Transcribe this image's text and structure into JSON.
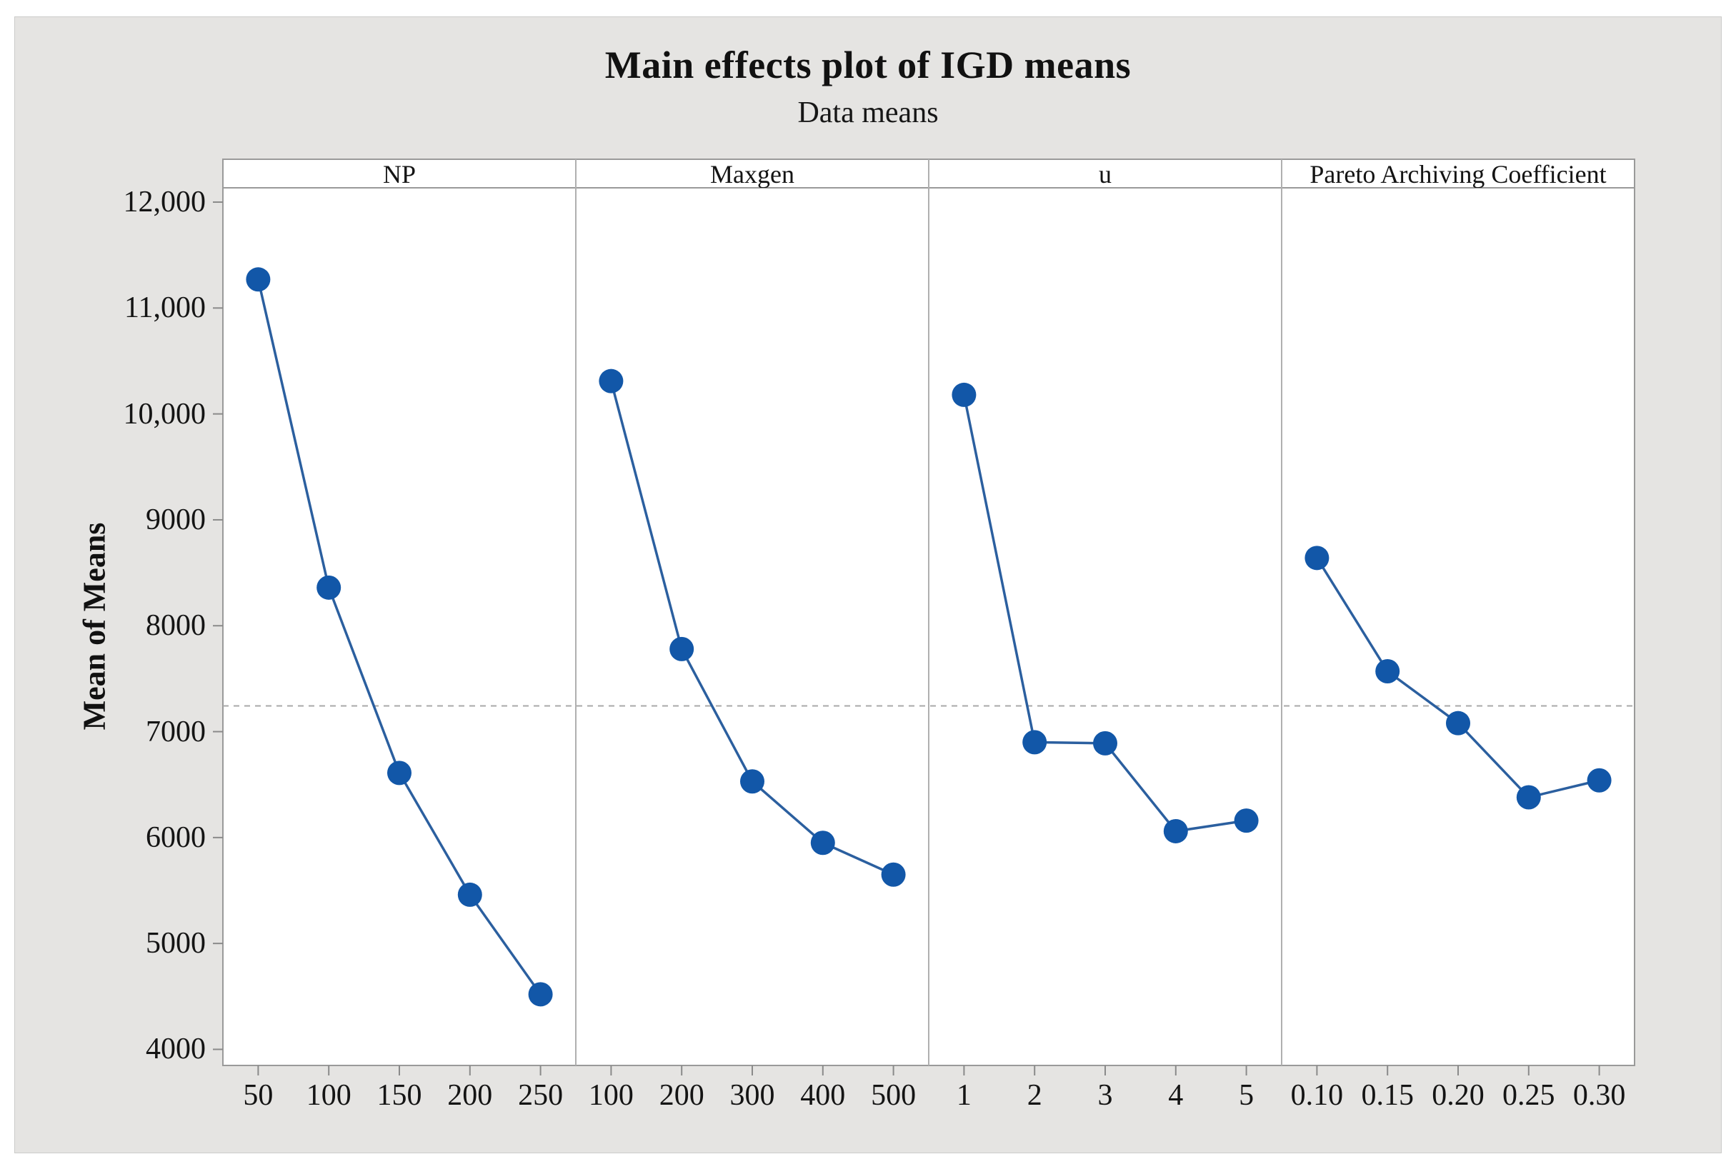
{
  "title": "Main effects plot of IGD means",
  "subtitle": "Data means",
  "colors": {
    "canvas_background": "#e5e4e2",
    "plot_background": "#ffffff",
    "panel_border": "#9a9a9a",
    "panel_separator": "#b0b0b0",
    "tick_mark": "#8a8a8a",
    "reference_line": "#a8a8a8",
    "series_line": "#2b5f9f",
    "marker_fill": "#1257a8",
    "text": "#141414"
  },
  "chart_data": {
    "type": "line",
    "title": "Main effects plot of IGD means",
    "subtitle": "Data means",
    "ylabel": "Mean of Means",
    "grid": "off",
    "legend": "none",
    "ylim": [
      3848,
      12135
    ],
    "reference_line_value": 7243,
    "marker": "filled-circle",
    "y_ticks": [
      {
        "value": 12000,
        "label": "12,000"
      },
      {
        "value": 11000,
        "label": "11,000"
      },
      {
        "value": 10000,
        "label": "10,000"
      },
      {
        "value": 9000,
        "label": "9000"
      },
      {
        "value": 8000,
        "label": "8000"
      },
      {
        "value": 7000,
        "label": "7000"
      },
      {
        "value": 6000,
        "label": "6000"
      },
      {
        "value": 5000,
        "label": "5000"
      },
      {
        "value": 4000,
        "label": "4000"
      }
    ],
    "panels": [
      {
        "header": "NP",
        "categories": [
          "50",
          "100",
          "150",
          "200",
          "250"
        ],
        "values": [
          11270,
          8360,
          6610,
          5460,
          4520
        ]
      },
      {
        "header": "Maxgen",
        "categories": [
          "100",
          "200",
          "300",
          "400",
          "500"
        ],
        "values": [
          10310,
          7780,
          6530,
          5950,
          5650
        ]
      },
      {
        "header": "u",
        "categories": [
          "1",
          "2",
          "3",
          "4",
          "5"
        ],
        "values": [
          10180,
          6900,
          6890,
          6060,
          6160
        ]
      },
      {
        "header": "Pareto Archiving Coefficient",
        "categories": [
          "0.10",
          "0.15",
          "0.20",
          "0.25",
          "0.30"
        ],
        "values": [
          8640,
          7570,
          7080,
          6380,
          6540
        ]
      }
    ]
  }
}
